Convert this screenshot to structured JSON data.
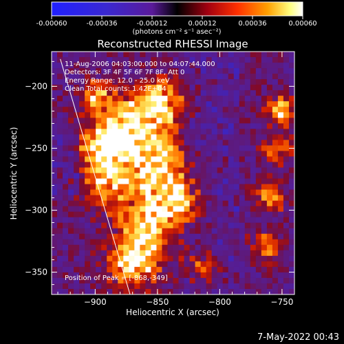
{
  "colorbar": {
    "ticks": [
      "-0.00060",
      "-0.00036",
      "-0.00012",
      "0.00012",
      "0.00036",
      "0.00060"
    ],
    "units_label": "(photons cm⁻² s⁻¹ asec⁻²)",
    "range": [
      -0.0006,
      0.0006
    ]
  },
  "chart_data": {
    "type": "heatmap",
    "title": "Reconstructed RHESSI Image",
    "xlabel": "Heliocentric X (arcsec)",
    "ylabel": "Heliocentric Y (arcsec)",
    "xlim": [
      -935,
      -740
    ],
    "ylim": [
      -368,
      -172
    ],
    "xticks": [
      -900,
      -850,
      -800,
      -750
    ],
    "yticks": [
      -200,
      -250,
      -300,
      -350
    ],
    "xtick_labels": [
      "−900",
      "−850",
      "−800",
      "−750"
    ],
    "ytick_labels": [
      "−200",
      "−250",
      "−300",
      "−350"
    ],
    "annotations": [
      "11-Aug-2006 04:03:00.000 to 04:07:44.000",
      "Detectors: 3F 4F 5F 6F 7F 8F, Att 0",
      "Energy Range: 12.0 - 25.0 keV",
      "Clean    Total counts: 1.42E+04"
    ],
    "peak_label": "Position of Peak = [-868,-349]",
    "peak_position": [
      -868,
      -349
    ],
    "limb_line": [
      [
        -928,
        -178
      ],
      [
        -872,
        -368
      ]
    ],
    "colormap": "rhessi red-temperature (blue negative, black zero, red-yellow-white positive)"
  },
  "footer": {
    "date_stamp": "7-May-2022 00:43"
  }
}
